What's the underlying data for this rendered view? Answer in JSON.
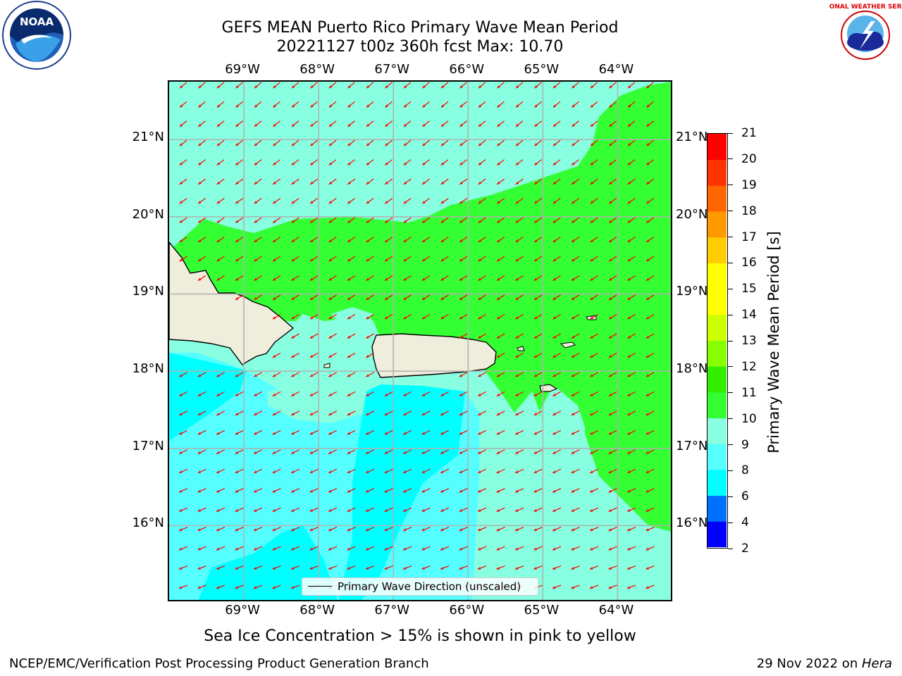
{
  "title": {
    "line1": "GEFS MEAN Puerto Rico Primary Wave Mean Period",
    "line2": "20221127 t00z 360h fcst   Max: 10.70"
  },
  "axes": {
    "lon_labels": [
      "69°W",
      "68°W",
      "67°W",
      "66°W",
      "65°W",
      "64°W"
    ],
    "lat_labels": [
      "21°N",
      "20°N",
      "19°N",
      "18°N",
      "17°N",
      "16°N"
    ],
    "lon_range": [
      -70.0,
      -63.25
    ],
    "lat_range": [
      15.0,
      21.75
    ],
    "grid": true
  },
  "legend": {
    "label": "Primary Wave Direction (unscaled)"
  },
  "colorbar": {
    "title": "Primary Wave Mean Period [s]",
    "levels": [
      "2",
      "4",
      "6",
      "8",
      "9",
      "10",
      "11",
      "12",
      "13",
      "14",
      "15",
      "16",
      "17",
      "18",
      "19",
      "20",
      "21"
    ],
    "colors": [
      "#0000ff",
      "#0070ff",
      "#00ffff",
      "#55ffff",
      "#88ffe0",
      "#33ff33",
      "#33ee00",
      "#88ff00",
      "#ccff00",
      "#ffff00",
      "#ffff00",
      "#ffcc00",
      "#ff9900",
      "#ff6600",
      "#ff3300",
      "#ff0000"
    ]
  },
  "map": {
    "land_color": "#efeddb",
    "arrow_color": "#ff0000",
    "wave_direction": "toward west-southwest",
    "max_period": "10.70"
  },
  "notes": {
    "sea_ice": "Sea Ice Concentration > 15% is shown in pink to yellow"
  },
  "footer": {
    "left": "NCEP/EMC/Verification Post Processing Product Generation Branch",
    "date": "29 Nov 2022 on ",
    "machine": "Hera"
  },
  "logos": {
    "left_icon": "noaa-logo",
    "left_text": "NOAA",
    "right_icon": "nws-logo",
    "right_text": "NATIONAL WEATHER SERVICE"
  }
}
